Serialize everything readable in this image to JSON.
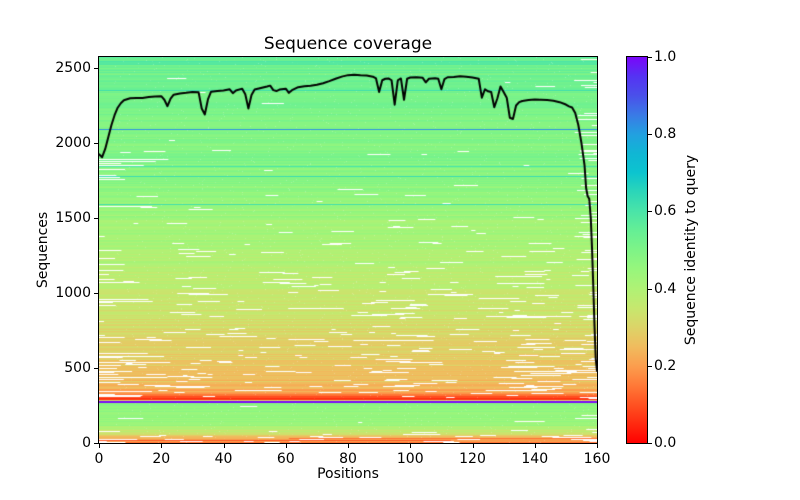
{
  "figure": {
    "background": "#ffffff"
  },
  "chart_data": {
    "type": "heatmap",
    "title": "Sequence coverage",
    "xlabel": "Positions",
    "ylabel": "Sequences",
    "colorbar_label": "Sequence identity to query",
    "xlim": [
      0,
      160
    ],
    "ylim": [
      0,
      2573
    ],
    "grid": false,
    "x_ticks": [
      0,
      20,
      40,
      60,
      80,
      100,
      120,
      140,
      160
    ],
    "y_ticks": [
      0,
      500,
      1000,
      1500,
      2000,
      2500
    ],
    "colorbar_ticks": [
      {
        "value": 0.0,
        "label": "0.0"
      },
      {
        "value": 0.2,
        "label": "0.2"
      },
      {
        "value": 0.4,
        "label": "0.4"
      },
      {
        "value": 0.6,
        "label": "0.6"
      },
      {
        "value": 0.8,
        "label": "0.8"
      },
      {
        "value": 1.0,
        "label": "1.0"
      }
    ],
    "colormap_name": "rainbow_r",
    "colormap_stops": [
      [
        0.0,
        "#ff0000"
      ],
      [
        0.05,
        "#ff2a10"
      ],
      [
        0.1,
        "#ff5222"
      ],
      [
        0.15,
        "#ff7a38"
      ],
      [
        0.2,
        "#fb9e4e"
      ],
      [
        0.25,
        "#f0bc5e"
      ],
      [
        0.3,
        "#dcd468"
      ],
      [
        0.35,
        "#c6e86e"
      ],
      [
        0.4,
        "#aff275"
      ],
      [
        0.45,
        "#97f67c"
      ],
      [
        0.5,
        "#7ef487"
      ],
      [
        0.55,
        "#65ef95"
      ],
      [
        0.6,
        "#4ae4a8"
      ],
      [
        0.65,
        "#2cd6b8"
      ],
      [
        0.7,
        "#0cc4cf"
      ],
      [
        0.75,
        "#10b6d4"
      ],
      [
        0.8,
        "#22a0e0"
      ],
      [
        0.85,
        "#3a7ae6"
      ],
      [
        0.9,
        "#4a50ea"
      ],
      [
        0.95,
        "#5533f3"
      ],
      [
        1.0,
        "#7a06f9"
      ]
    ],
    "coverage_line": {
      "color": "#000000",
      "width": 2,
      "points": [
        [
          0,
          1925
        ],
        [
          1,
          1905
        ],
        [
          2,
          1960
        ],
        [
          3,
          2040
        ],
        [
          4,
          2120
        ],
        [
          5,
          2185
        ],
        [
          6,
          2235
        ],
        [
          7,
          2265
        ],
        [
          8,
          2285
        ],
        [
          10,
          2298
        ],
        [
          12,
          2300
        ],
        [
          14,
          2300
        ],
        [
          16,
          2306
        ],
        [
          18,
          2310
        ],
        [
          20,
          2312
        ],
        [
          21,
          2288
        ],
        [
          22,
          2245
        ],
        [
          23,
          2295
        ],
        [
          24,
          2322
        ],
        [
          26,
          2330
        ],
        [
          28,
          2334
        ],
        [
          30,
          2340
        ],
        [
          32,
          2338
        ],
        [
          33,
          2230
        ],
        [
          34,
          2190
        ],
        [
          35,
          2290
        ],
        [
          36,
          2342
        ],
        [
          38,
          2346
        ],
        [
          40,
          2350
        ],
        [
          42,
          2358
        ],
        [
          43,
          2332
        ],
        [
          44,
          2350
        ],
        [
          46,
          2362
        ],
        [
          47,
          2325
        ],
        [
          48,
          2230
        ],
        [
          49,
          2320
        ],
        [
          50,
          2356
        ],
        [
          52,
          2366
        ],
        [
          54,
          2376
        ],
        [
          55,
          2382
        ],
        [
          56,
          2352
        ],
        [
          57,
          2346
        ],
        [
          58,
          2356
        ],
        [
          60,
          2362
        ],
        [
          61,
          2334
        ],
        [
          62,
          2352
        ],
        [
          64,
          2372
        ],
        [
          66,
          2378
        ],
        [
          68,
          2382
        ],
        [
          70,
          2388
        ],
        [
          72,
          2398
        ],
        [
          74,
          2412
        ],
        [
          76,
          2428
        ],
        [
          78,
          2442
        ],
        [
          80,
          2452
        ],
        [
          82,
          2455
        ],
        [
          84,
          2452
        ],
        [
          86,
          2450
        ],
        [
          88,
          2442
        ],
        [
          89,
          2430
        ],
        [
          90,
          2340
        ],
        [
          91,
          2418
        ],
        [
          92,
          2428
        ],
        [
          93,
          2430
        ],
        [
          94,
          2418
        ],
        [
          95,
          2255
        ],
        [
          96,
          2418
        ],
        [
          97,
          2430
        ],
        [
          98,
          2288
        ],
        [
          99,
          2428
        ],
        [
          100,
          2436
        ],
        [
          102,
          2438
        ],
        [
          104,
          2434
        ],
        [
          105,
          2404
        ],
        [
          106,
          2428
        ],
        [
          108,
          2432
        ],
        [
          109,
          2428
        ],
        [
          110,
          2358
        ],
        [
          111,
          2426
        ],
        [
          112,
          2438
        ],
        [
          114,
          2440
        ],
        [
          116,
          2444
        ],
        [
          118,
          2442
        ],
        [
          120,
          2436
        ],
        [
          122,
          2428
        ],
        [
          123,
          2302
        ],
        [
          124,
          2358
        ],
        [
          125,
          2344
        ],
        [
          126,
          2340
        ],
        [
          127,
          2238
        ],
        [
          128,
          2298
        ],
        [
          129,
          2376
        ],
        [
          130,
          2340
        ],
        [
          131,
          2302
        ],
        [
          132,
          2168
        ],
        [
          133,
          2160
        ],
        [
          134,
          2250
        ],
        [
          135,
          2272
        ],
        [
          136,
          2280
        ],
        [
          138,
          2286
        ],
        [
          140,
          2290
        ],
        [
          142,
          2288
        ],
        [
          144,
          2286
        ],
        [
          146,
          2282
        ],
        [
          148,
          2272
        ],
        [
          150,
          2256
        ],
        [
          151,
          2244
        ],
        [
          152,
          2236
        ],
        [
          153,
          2200
        ],
        [
          154,
          2120
        ],
        [
          155,
          2000
        ],
        [
          156,
          1850
        ],
        [
          156.5,
          1700
        ],
        [
          157,
          1645
        ],
        [
          157.5,
          1628
        ],
        [
          158,
          1500
        ],
        [
          158.4,
          1300
        ],
        [
          158.8,
          1050
        ],
        [
          159.2,
          780
        ],
        [
          159.6,
          560
        ],
        [
          160,
          480
        ]
      ]
    },
    "identity_bands": [
      {
        "seq_hi": 2573,
        "seq_lo": 2440,
        "id_hi": 0.57,
        "id_lo": 0.53,
        "jitter": 0.05,
        "gap": 0.0,
        "end_gap": 0.1,
        "start_gap": 0.0,
        "clusters": false
      },
      {
        "seq_hi": 2440,
        "seq_lo": 1950,
        "id_hi": 0.53,
        "id_lo": 0.48,
        "jitter": 0.025,
        "gap": 0.01,
        "end_gap": 0.12,
        "start_gap": 0.0,
        "clusters": false
      },
      {
        "seq_hi": 1950,
        "seq_lo": 1600,
        "id_hi": 0.5,
        "id_lo": 0.45,
        "jitter": 0.03,
        "gap": 0.04,
        "end_gap": 0.15,
        "start_gap": 0.06,
        "clusters": false
      },
      {
        "seq_hi": 1600,
        "seq_lo": 1150,
        "id_hi": 0.45,
        "id_lo": 0.38,
        "jitter": 0.03,
        "gap": 0.07,
        "end_gap": 0.2,
        "start_gap": 0.02,
        "clusters": false
      },
      {
        "seq_hi": 1150,
        "seq_lo": 700,
        "id_hi": 0.38,
        "id_lo": 0.3,
        "jitter": 0.03,
        "gap": 0.13,
        "end_gap": 0.25,
        "start_gap": 0.02,
        "clusters": true
      },
      {
        "seq_hi": 700,
        "seq_lo": 420,
        "id_hi": 0.3,
        "id_lo": 0.26,
        "jitter": 0.03,
        "gap": 0.18,
        "end_gap": 0.3,
        "start_gap": 0.04,
        "clusters": true
      },
      {
        "seq_hi": 420,
        "seq_lo": 330,
        "id_hi": 0.26,
        "id_lo": 0.22,
        "jitter": 0.04,
        "gap": 0.22,
        "end_gap": 0.3,
        "start_gap": 0.05,
        "clusters": true
      },
      {
        "seq_hi": 330,
        "seq_lo": 287,
        "id_hi": 0.18,
        "id_lo": 0.08,
        "jitter": 0.05,
        "gap": 0.18,
        "end_gap": 0.25,
        "start_gap": 0.05,
        "clusters": false
      },
      {
        "seq_hi": 287,
        "seq_lo": 276,
        "id_hi": 0.3,
        "id_lo": 0.25,
        "jitter": 0.03,
        "gap": 0.05,
        "end_gap": 0.0,
        "start_gap": 0.0,
        "clusters": false
      },
      {
        "seq_hi": 276,
        "seq_lo": 115,
        "id_hi": 0.48,
        "id_lo": 0.44,
        "jitter": 0.02,
        "gap": 0.02,
        "end_gap": 0.08,
        "start_gap": 0.0,
        "clusters": false
      },
      {
        "seq_hi": 115,
        "seq_lo": 55,
        "id_hi": 0.4,
        "id_lo": 0.33,
        "jitter": 0.03,
        "gap": 0.1,
        "end_gap": 0.2,
        "start_gap": 0.03,
        "clusters": false
      },
      {
        "seq_hi": 55,
        "seq_lo": 0,
        "id_hi": 0.28,
        "id_lo": 0.16,
        "jitter": 0.05,
        "gap": 0.25,
        "end_gap": 0.3,
        "start_gap": 0.05,
        "clusters": false
      }
    ],
    "special_rows": [
      {
        "seq": 2350,
        "identity": 0.62,
        "px": 1,
        "x_from": 0,
        "x_to": 160,
        "label": "cyan-row"
      },
      {
        "seq": 2090,
        "identity": 0.82,
        "px": 1,
        "x_from": 0,
        "x_to": 160,
        "label": "blue-row"
      },
      {
        "seq": 1845,
        "identity": 0.6,
        "px": 1,
        "x_from": 0,
        "x_to": 160,
        "label": "cyan-row"
      },
      {
        "seq": 1782,
        "identity": 0.63,
        "px": 1,
        "x_from": 0,
        "x_to": 160,
        "label": "cyan-row"
      },
      {
        "seq": 1590,
        "identity": 0.62,
        "px": 1,
        "x_from": 0,
        "x_to": 160,
        "label": "cyan-row"
      },
      {
        "seq": 292,
        "identity": 0.06,
        "px": 1,
        "x_from": 0,
        "x_to": 160,
        "label": "red-row"
      },
      {
        "seq": 281,
        "identity": 1.0,
        "px": 2,
        "x_from": 0,
        "x_to": 160,
        "label": "query-row"
      },
      {
        "seq": 30,
        "identity": 0.14,
        "px": 1,
        "x_from": 61,
        "x_to": 160,
        "label": "red-row"
      },
      {
        "seq": 18,
        "identity": 0.1,
        "px": 1,
        "x_from": 0,
        "x_to": 113,
        "label": "red-row"
      }
    ],
    "gap_clusters": [
      {
        "x0": 92,
        "x1": 99
      },
      {
        "x0": 126,
        "x1": 139
      }
    ],
    "noise_seed": 42
  }
}
